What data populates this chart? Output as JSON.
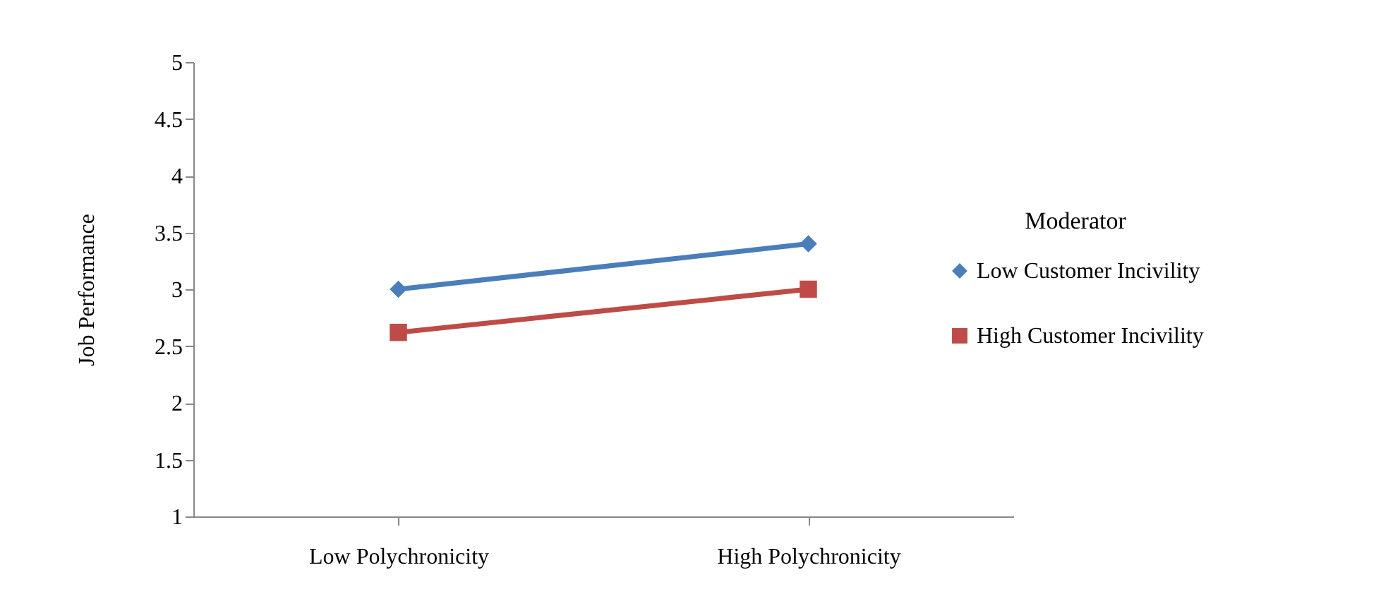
{
  "chart_data": {
    "type": "line",
    "ylabel": "Job Performance",
    "legend_title": "Moderator",
    "categories": [
      "Low Polychronicity",
      "High Polychronicity"
    ],
    "series": [
      {
        "name": "Low Customer Incivility",
        "color": "#4a7ebb",
        "marker": "diamond",
        "values": [
          3.0,
          3.4
        ]
      },
      {
        "name": "High Customer Incivility",
        "color": "#be4b48",
        "marker": "square",
        "values": [
          2.62,
          3.0
        ]
      }
    ],
    "ylim": [
      1,
      5
    ],
    "yticks": [
      1,
      1.5,
      2,
      2.5,
      3,
      3.5,
      4,
      4.5,
      5
    ],
    "grid": false,
    "legend": "right",
    "line_style": "solid"
  }
}
